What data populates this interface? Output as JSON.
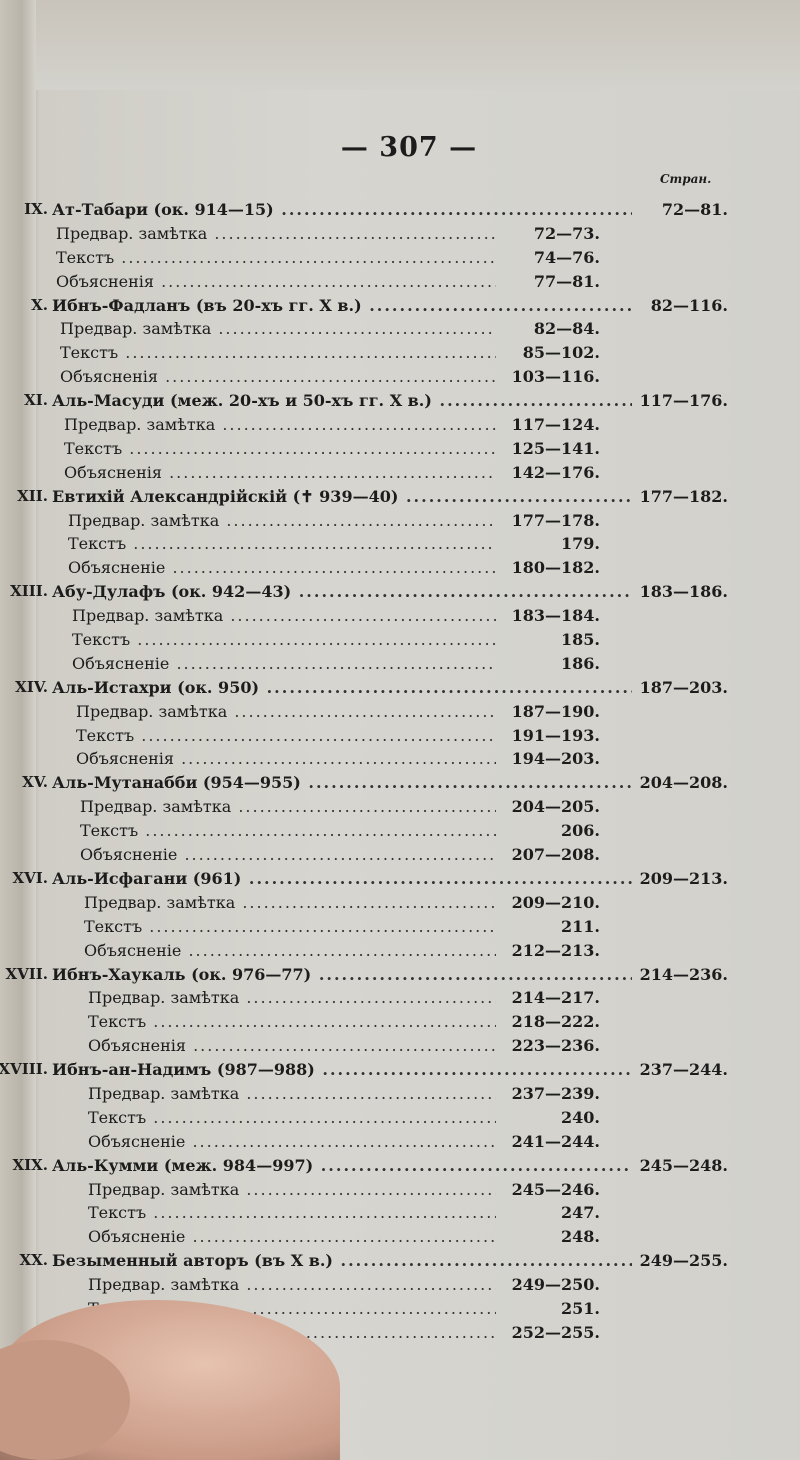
{
  "page_number": "— 307 —",
  "column_header": "Стран.",
  "sections": [
    {
      "numeral": "IX.",
      "title": "Ат-Табари (ок. 914—15)",
      "pages": "72—81.",
      "items": [
        {
          "label": "Предвар. замѣтка",
          "pages": "72—73."
        },
        {
          "label": "Текстъ",
          "pages": "74—76."
        },
        {
          "label": "Объясненія",
          "pages": "77—81."
        }
      ]
    },
    {
      "numeral": "X.",
      "title": "Ибнъ-Фадланъ (въ 20-хъ гг. X в.)",
      "pages": "82—116.",
      "items": [
        {
          "label": "Предвар. замѣтка",
          "pages": "82—84."
        },
        {
          "label": "Текстъ",
          "pages": "85—102."
        },
        {
          "label": "Объясненія",
          "pages": "103—116."
        }
      ]
    },
    {
      "numeral": "XI.",
      "title": "Аль-Масуди (меж. 20-хъ и 50-хъ гг. X в.)",
      "pages": "117—176.",
      "items": [
        {
          "label": "Предвар. замѣтка",
          "pages": "117—124."
        },
        {
          "label": "Текстъ",
          "pages": "125—141."
        },
        {
          "label": "Объясненія",
          "pages": "142—176."
        }
      ]
    },
    {
      "numeral": "XII.",
      "title": "Евтихій Александрійскій (✝ 939—40)",
      "pages": "177—182.",
      "items": [
        {
          "label": "Предвар. замѣтка",
          "pages": "177—178."
        },
        {
          "label": "Текстъ",
          "pages": "179."
        },
        {
          "label": "Объясненіе",
          "pages": "180—182."
        }
      ]
    },
    {
      "numeral": "XIII.",
      "title": "Абу-Дулафъ (ок. 942—43)",
      "pages": "183—186.",
      "items": [
        {
          "label": "Предвар. замѣтка",
          "pages": "183—184."
        },
        {
          "label": "Текстъ",
          "pages": "185."
        },
        {
          "label": "Объясненіе",
          "pages": "186."
        }
      ]
    },
    {
      "numeral": "XIV.",
      "title": "Аль-Истахри (ок. 950)",
      "pages": "187—203.",
      "items": [
        {
          "label": "Предвар. замѣтка",
          "pages": "187—190."
        },
        {
          "label": "Текстъ",
          "pages": "191—193."
        },
        {
          "label": "Объясненія",
          "pages": "194—203."
        }
      ]
    },
    {
      "numeral": "XV.",
      "title": "Аль-Мутанабби (954—955)",
      "pages": "204—208.",
      "items": [
        {
          "label": "Предвар. замѣтка",
          "pages": "204—205."
        },
        {
          "label": "Текстъ",
          "pages": "206."
        },
        {
          "label": "Объясненіе",
          "pages": "207—208."
        }
      ]
    },
    {
      "numeral": "XVI.",
      "title": "Аль-Исфагани (961)",
      "pages": "209—213.",
      "items": [
        {
          "label": "Предвар. замѣтка",
          "pages": "209—210."
        },
        {
          "label": "Текстъ",
          "pages": "211."
        },
        {
          "label": "Объясненіе",
          "pages": "212—213."
        }
      ]
    },
    {
      "numeral": "XVII.",
      "title": "Ибнъ-Хаукаль (ок. 976—77)",
      "pages": "214—236.",
      "items": [
        {
          "label": "Предвар. замѣтка",
          "pages": "214—217."
        },
        {
          "label": "Текстъ",
          "pages": "218—222."
        },
        {
          "label": "Объясненія",
          "pages": "223—236."
        }
      ]
    },
    {
      "numeral": "XVIII.",
      "title": "Ибнъ-ан-Надимъ (987—988)",
      "pages": "237—244.",
      "items": [
        {
          "label": "Предвар. замѣтка",
          "pages": "237—239."
        },
        {
          "label": "Текстъ",
          "pages": "240."
        },
        {
          "label": "Объясненіе",
          "pages": "241—244."
        }
      ]
    },
    {
      "numeral": "XIX.",
      "title": "Аль-Кумми (меж. 984—997)",
      "pages": "245—248.",
      "items": [
        {
          "label": "Предвар. замѣтка",
          "pages": "245—246."
        },
        {
          "label": "Текстъ",
          "pages": "247."
        },
        {
          "label": "Объясненіе",
          "pages": "248."
        }
      ]
    },
    {
      "numeral": "XX.",
      "title": "Безыменный авторъ (въ X в.)",
      "pages": "249—255.",
      "items": [
        {
          "label": "Предвар. замѣтка",
          "pages": "249—250."
        },
        {
          "label": "Текстъ",
          "pages": "251."
        },
        {
          "label": "Объясненіе",
          "pages": "252—255."
        }
      ]
    }
  ]
}
